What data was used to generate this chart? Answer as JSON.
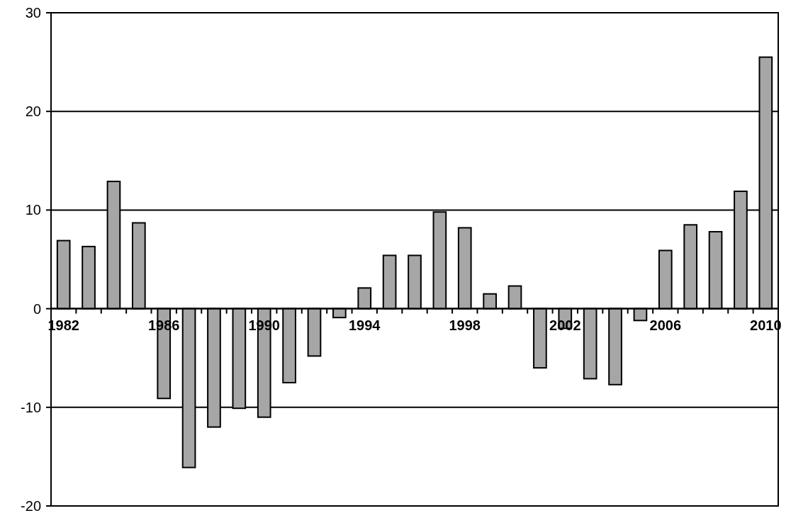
{
  "chart_data": {
    "type": "bar",
    "categories": [
      "1982",
      null,
      null,
      null,
      "1986",
      null,
      null,
      null,
      "1990",
      null,
      null,
      null,
      "1994",
      null,
      null,
      null,
      "1998",
      null,
      null,
      null,
      "2002",
      null,
      null,
      null,
      "2006",
      null,
      null,
      null,
      "2010"
    ],
    "values": [
      6.9,
      6.3,
      12.9,
      8.7,
      -9.1,
      -16.1,
      -12.0,
      -10.1,
      -11.0,
      -7.5,
      -4.8,
      -0.9,
      2.1,
      5.4,
      5.4,
      9.8,
      8.2,
      1.5,
      2.3,
      -6.0,
      -2.0,
      -7.1,
      -7.7,
      -1.2,
      5.9,
      8.5,
      7.8,
      11.9,
      25.5
    ],
    "color": "#a6a6a6",
    "ylim": [
      -20,
      30
    ],
    "yticks": [
      -20,
      -10,
      0,
      10,
      20,
      30
    ],
    "grid": "y"
  }
}
